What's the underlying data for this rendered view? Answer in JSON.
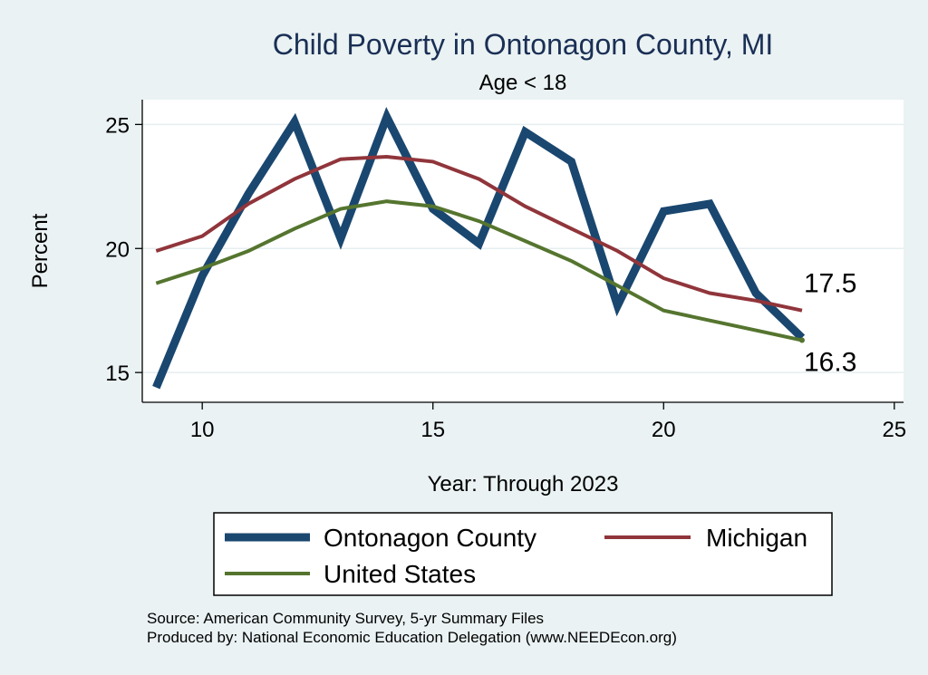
{
  "chart_data": {
    "type": "line",
    "title": "Child Poverty in Ontonagon County, MI",
    "subtitle": "Age < 18",
    "xlabel": "Year: Through 2023",
    "ylabel": "Percent",
    "xlim": [
      8.7,
      25.2
    ],
    "ylim": [
      13.8,
      26.0
    ],
    "xticks": [
      10,
      15,
      20,
      25
    ],
    "yticks": [
      15,
      20,
      25
    ],
    "grid": true,
    "legend_position": "bottom",
    "x": [
      9,
      10,
      11,
      12,
      13,
      14,
      15,
      16,
      17,
      18,
      19,
      20,
      21,
      22,
      23
    ],
    "series": [
      {
        "name": "Ontonagon County",
        "color": "#1a476f",
        "width": 9,
        "values": [
          14.4,
          18.9,
          22.2,
          25.1,
          20.4,
          25.3,
          21.6,
          20.2,
          24.7,
          23.5,
          17.7,
          21.5,
          21.8,
          18.2,
          16.4
        ]
      },
      {
        "name": "Michigan",
        "color": "#90353b",
        "width": 4,
        "values": [
          19.9,
          20.5,
          21.8,
          22.8,
          23.6,
          23.7,
          23.5,
          22.8,
          21.7,
          20.8,
          19.9,
          18.8,
          18.2,
          17.9,
          17.5
        ]
      },
      {
        "name": "United States",
        "color": "#55752f",
        "width": 4,
        "values": [
          18.6,
          19.2,
          19.9,
          20.8,
          21.6,
          21.9,
          21.7,
          21.1,
          20.3,
          19.5,
          18.5,
          17.5,
          17.1,
          16.7,
          16.3
        ]
      }
    ],
    "end_labels": [
      {
        "series": "Michigan",
        "text": "17.5"
      },
      {
        "series": "United States",
        "text": "16.3"
      }
    ],
    "notes": [
      "Source: American Community Survey, 5-yr Summary Files",
      "Produced by: National Economic Education Delegation (www.NEEDEcon.org)"
    ]
  }
}
